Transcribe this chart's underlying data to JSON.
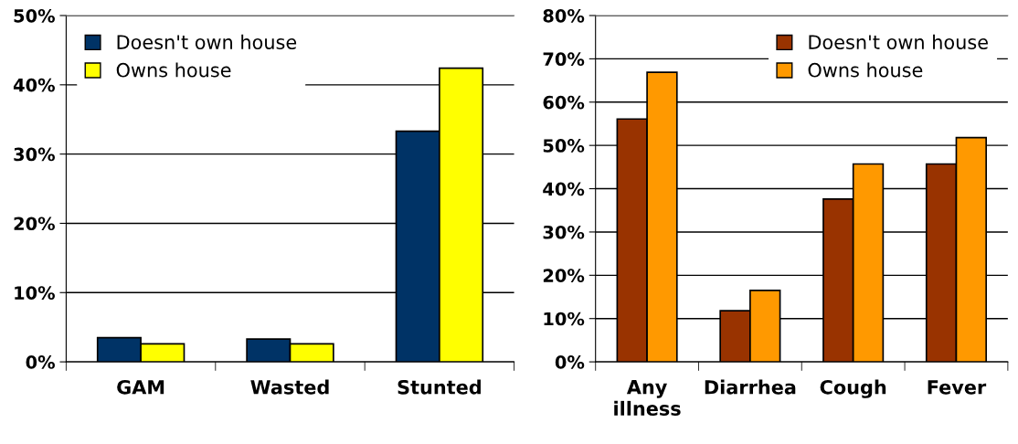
{
  "chart_data": [
    {
      "type": "bar",
      "categories": [
        "GAM",
        "Wasted",
        "Stunted"
      ],
      "series": [
        {
          "name": "Doesn't own house",
          "color": "#003366",
          "values": [
            3.5,
            3.3,
            33.3
          ]
        },
        {
          "name": "Owns house",
          "color": "#ffff00",
          "values": [
            2.6,
            2.6,
            42.4
          ]
        }
      ],
      "ylim": [
        0,
        50
      ],
      "yticks": [
        {
          "value": 0,
          "label": "0%"
        },
        {
          "value": 10,
          "label": "10%"
        },
        {
          "value": 20,
          "label": "20%"
        },
        {
          "value": 30,
          "label": "30%"
        },
        {
          "value": 40,
          "label": "40%"
        },
        {
          "value": 50,
          "label": "50%"
        }
      ],
      "grid": "y",
      "legend": "top left"
    },
    {
      "type": "bar",
      "categories": [
        "Any\nillness",
        "Diarrhea",
        "Cough",
        "Fever"
      ],
      "series": [
        {
          "name": "Doesn't own house",
          "color": "#993300",
          "values": [
            56.1,
            11.8,
            37.6,
            45.7
          ]
        },
        {
          "name": "Owns house",
          "color": "#ff9900",
          "values": [
            66.9,
            16.5,
            45.7,
            51.8
          ]
        }
      ],
      "ylim": [
        0,
        80
      ],
      "yticks": [
        {
          "value": 0,
          "label": "0%"
        },
        {
          "value": 10,
          "label": "10%"
        },
        {
          "value": 20,
          "label": "20%"
        },
        {
          "value": 30,
          "label": "30%"
        },
        {
          "value": 40,
          "label": "40%"
        },
        {
          "value": 50,
          "label": "50%"
        },
        {
          "value": 60,
          "label": "60%"
        },
        {
          "value": 70,
          "label": "70%"
        },
        {
          "value": 80,
          "label": "80%"
        }
      ],
      "grid": "y",
      "legend": "top right"
    }
  ]
}
